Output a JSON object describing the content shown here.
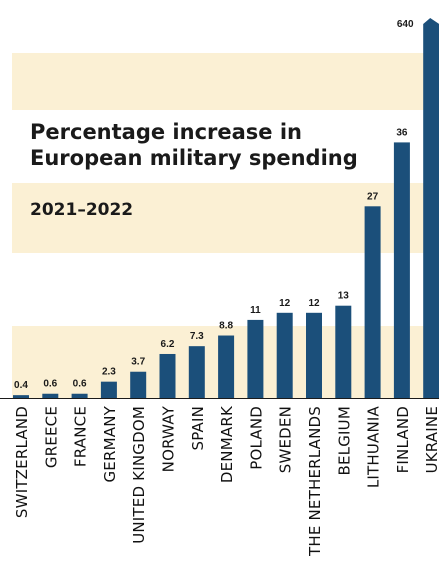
{
  "chart_data": {
    "type": "bar",
    "title": "Percentage increase in European military spending",
    "title_lines": [
      "Percentage increase in",
      "European military spending"
    ],
    "subtitle": "2021–2022",
    "categories": [
      "SWITZERLAND",
      "GREECE",
      "FRANCE",
      "GERMANY",
      "UNITED KINGDOM",
      "NORWAY",
      "SPAIN",
      "DENMARK",
      "POLAND",
      "SWEDEN",
      "THE NETHERLANDS",
      "BELGIUM",
      "LITHUANIA",
      "FINLAND",
      "UKRAINE"
    ],
    "values": [
      0.4,
      0.6,
      0.6,
      2.3,
      3.7,
      6.2,
      7.3,
      8.8,
      11,
      12,
      12,
      13,
      27,
      36,
      640
    ],
    "value_labels": [
      "0.4",
      "0.6",
      "0.6",
      "2.3",
      "3.7",
      "6.2",
      "7.3",
      "8.8",
      "11",
      "12",
      "12",
      "13",
      "27",
      "36",
      "640"
    ],
    "axis_break": true,
    "colors": {
      "bar": "#1b4f7a",
      "band": "#fbf0d4",
      "text": "#1a1a1a"
    },
    "grid": false,
    "legend": "none"
  }
}
